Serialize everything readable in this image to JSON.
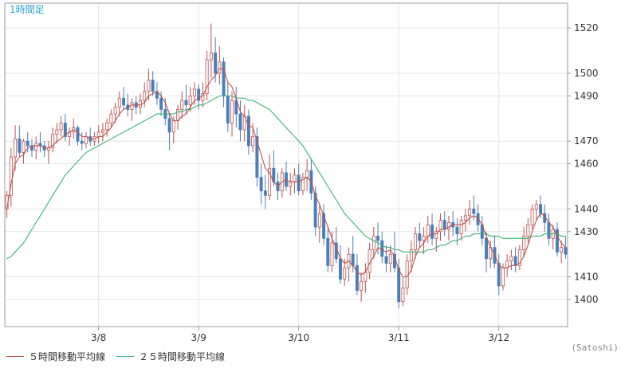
{
  "chart_data": {
    "type": "candlestick",
    "title": "1時間足",
    "ylim": [
      1388,
      1531
    ],
    "y_ticks": [
      1400,
      1410,
      1430,
      1440,
      1460,
      1470,
      1490,
      1500,
      1520
    ],
    "x_ticks": [
      "3/8",
      "3/9",
      "3/10",
      "3/11",
      "3/12"
    ],
    "x_tick_bar_index": [
      22,
      46,
      70,
      94,
      118
    ],
    "colors": {
      "up": "#c0504d",
      "down": "#4a7ebb",
      "ma5": "#c0504d",
      "ma25": "#3cb371",
      "title": "#29a0d8",
      "grid": "#e4e4e4",
      "axis": "#999999"
    },
    "series": [
      {
        "name": "OHLC",
        "ohlc": [
          [
            1440,
            1448,
            1436,
            1446
          ],
          [
            1446,
            1467,
            1441,
            1463
          ],
          [
            1463,
            1477,
            1457,
            1471
          ],
          [
            1471,
            1477,
            1463,
            1465
          ],
          [
            1465,
            1471,
            1460,
            1470
          ],
          [
            1470,
            1474,
            1465,
            1468
          ],
          [
            1468,
            1471,
            1463,
            1466
          ],
          [
            1466,
            1472,
            1462,
            1469
          ],
          [
            1469,
            1474,
            1465,
            1468
          ],
          [
            1468,
            1470,
            1463,
            1466
          ],
          [
            1466,
            1470,
            1460,
            1467
          ],
          [
            1467,
            1476,
            1465,
            1473
          ],
          [
            1473,
            1478,
            1469,
            1475
          ],
          [
            1475,
            1481,
            1472,
            1478
          ],
          [
            1478,
            1482,
            1470,
            1472
          ],
          [
            1472,
            1476,
            1468,
            1474
          ],
          [
            1474,
            1480,
            1471,
            1476
          ],
          [
            1476,
            1477,
            1468,
            1470
          ],
          [
            1470,
            1474,
            1466,
            1469
          ],
          [
            1469,
            1474,
            1467,
            1472
          ],
          [
            1472,
            1476,
            1468,
            1470
          ],
          [
            1470,
            1474,
            1468,
            1472
          ],
          [
            1472,
            1477,
            1469,
            1474
          ],
          [
            1474,
            1478,
            1470,
            1475
          ],
          [
            1475,
            1480,
            1472,
            1478
          ],
          [
            1478,
            1484,
            1476,
            1482
          ],
          [
            1482,
            1487,
            1478,
            1485
          ],
          [
            1485,
            1492,
            1481,
            1489
          ],
          [
            1489,
            1494,
            1484,
            1486
          ],
          [
            1486,
            1491,
            1481,
            1484
          ],
          [
            1484,
            1489,
            1479,
            1487
          ],
          [
            1487,
            1490,
            1482,
            1485
          ],
          [
            1485,
            1491,
            1482,
            1488
          ],
          [
            1488,
            1496,
            1485,
            1492
          ],
          [
            1492,
            1502,
            1488,
            1497
          ],
          [
            1497,
            1501,
            1490,
            1492
          ],
          [
            1492,
            1496,
            1486,
            1489
          ],
          [
            1489,
            1492,
            1481,
            1484
          ],
          [
            1484,
            1489,
            1477,
            1480
          ],
          [
            1480,
            1482,
            1466,
            1474
          ],
          [
            1474,
            1481,
            1469,
            1479
          ],
          [
            1479,
            1486,
            1475,
            1484
          ],
          [
            1484,
            1492,
            1480,
            1488
          ],
          [
            1488,
            1495,
            1482,
            1486
          ],
          [
            1486,
            1494,
            1483,
            1490
          ],
          [
            1490,
            1496,
            1486,
            1493
          ],
          [
            1493,
            1495,
            1484,
            1488
          ],
          [
            1488,
            1496,
            1485,
            1491
          ],
          [
            1491,
            1510,
            1488,
            1506
          ],
          [
            1506,
            1522,
            1498,
            1509
          ],
          [
            1509,
            1516,
            1496,
            1500
          ],
          [
            1500,
            1512,
            1495,
            1505
          ],
          [
            1505,
            1507,
            1485,
            1490
          ],
          [
            1490,
            1496,
            1474,
            1478
          ],
          [
            1478,
            1492,
            1472,
            1488
          ],
          [
            1488,
            1494,
            1476,
            1482
          ],
          [
            1482,
            1488,
            1470,
            1475
          ],
          [
            1475,
            1486,
            1470,
            1481
          ],
          [
            1481,
            1484,
            1464,
            1468
          ],
          [
            1468,
            1478,
            1465,
            1472
          ],
          [
            1472,
            1476,
            1450,
            1454
          ],
          [
            1454,
            1460,
            1442,
            1448
          ],
          [
            1448,
            1455,
            1440,
            1446
          ],
          [
            1446,
            1464,
            1444,
            1458
          ],
          [
            1458,
            1466,
            1450,
            1452
          ],
          [
            1452,
            1456,
            1444,
            1448
          ],
          [
            1448,
            1458,
            1445,
            1456
          ],
          [
            1456,
            1461,
            1448,
            1450
          ],
          [
            1450,
            1456,
            1446,
            1452
          ],
          [
            1452,
            1458,
            1447,
            1455
          ],
          [
            1455,
            1460,
            1446,
            1448
          ],
          [
            1448,
            1456,
            1446,
            1454
          ],
          [
            1454,
            1462,
            1448,
            1457
          ],
          [
            1457,
            1462,
            1444,
            1447
          ],
          [
            1447,
            1450,
            1428,
            1432
          ],
          [
            1432,
            1442,
            1425,
            1438
          ],
          [
            1438,
            1442,
            1424,
            1427
          ],
          [
            1427,
            1432,
            1412,
            1415
          ],
          [
            1415,
            1430,
            1412,
            1425
          ],
          [
            1425,
            1432,
            1416,
            1418
          ],
          [
            1418,
            1424,
            1407,
            1409
          ],
          [
            1409,
            1418,
            1406,
            1414
          ],
          [
            1414,
            1423,
            1408,
            1420
          ],
          [
            1420,
            1428,
            1412,
            1415
          ],
          [
            1415,
            1420,
            1402,
            1404
          ],
          [
            1404,
            1412,
            1399,
            1408
          ],
          [
            1408,
            1416,
            1403,
            1412
          ],
          [
            1412,
            1425,
            1409,
            1422
          ],
          [
            1422,
            1432,
            1418,
            1428
          ],
          [
            1428,
            1434,
            1420,
            1426
          ],
          [
            1426,
            1430,
            1416,
            1419
          ],
          [
            1419,
            1424,
            1412,
            1416
          ],
          [
            1416,
            1424,
            1412,
            1420
          ],
          [
            1420,
            1430,
            1412,
            1414
          ],
          [
            1414,
            1418,
            1396,
            1399
          ],
          [
            1399,
            1410,
            1397,
            1405
          ],
          [
            1405,
            1420,
            1402,
            1417
          ],
          [
            1417,
            1426,
            1412,
            1422
          ],
          [
            1422,
            1432,
            1418,
            1429
          ],
          [
            1429,
            1434,
            1423,
            1426
          ],
          [
            1426,
            1432,
            1420,
            1428
          ],
          [
            1428,
            1437,
            1425,
            1433
          ],
          [
            1433,
            1438,
            1424,
            1427
          ],
          [
            1427,
            1432,
            1421,
            1430
          ],
          [
            1430,
            1438,
            1426,
            1435
          ],
          [
            1435,
            1439,
            1428,
            1431
          ],
          [
            1431,
            1437,
            1426,
            1434
          ],
          [
            1434,
            1439,
            1428,
            1432
          ],
          [
            1432,
            1436,
            1424,
            1429
          ],
          [
            1429,
            1437,
            1426,
            1435
          ],
          [
            1435,
            1440,
            1430,
            1437
          ],
          [
            1437,
            1444,
            1433,
            1440
          ],
          [
            1440,
            1446,
            1435,
            1438
          ],
          [
            1438,
            1442,
            1430,
            1433
          ],
          [
            1433,
            1437,
            1424,
            1427
          ],
          [
            1427,
            1430,
            1412,
            1418
          ],
          [
            1418,
            1426,
            1414,
            1423
          ],
          [
            1423,
            1428,
            1414,
            1416
          ],
          [
            1416,
            1420,
            1402,
            1406
          ],
          [
            1406,
            1416,
            1404,
            1414
          ],
          [
            1414,
            1420,
            1410,
            1417
          ],
          [
            1417,
            1422,
            1413,
            1419
          ],
          [
            1419,
            1423,
            1412,
            1415
          ],
          [
            1415,
            1424,
            1413,
            1422
          ],
          [
            1422,
            1432,
            1419,
            1428
          ],
          [
            1428,
            1436,
            1425,
            1433
          ],
          [
            1433,
            1442,
            1431,
            1440
          ],
          [
            1440,
            1444,
            1435,
            1442
          ],
          [
            1442,
            1446,
            1436,
            1438
          ],
          [
            1438,
            1442,
            1430,
            1434
          ],
          [
            1434,
            1438,
            1424,
            1427
          ],
          [
            1427,
            1433,
            1422,
            1431
          ],
          [
            1431,
            1434,
            1419,
            1421
          ],
          [
            1421,
            1426,
            1416,
            1423
          ],
          [
            1423,
            1428,
            1418,
            1420
          ]
        ]
      },
      {
        "name": "５時間移動平均線",
        "values": [
          1440,
          1451,
          1460,
          1463,
          1464,
          1467,
          1468,
          1468,
          1468,
          1467,
          1467,
          1468,
          1470,
          1471,
          1473,
          1474,
          1475,
          1474,
          1472,
          1472,
          1471,
          1471,
          1472,
          1472,
          1474,
          1476,
          1479,
          1482,
          1484,
          1485,
          1486,
          1486,
          1486,
          1487,
          1490,
          1491,
          1492,
          1490,
          1487,
          1482,
          1479,
          1479,
          1481,
          1482,
          1485,
          1488,
          1489,
          1490,
          1494,
          1497,
          1499,
          1502,
          1502,
          1496,
          1494,
          1489,
          1483,
          1481,
          1477,
          1476,
          1470,
          1464,
          1458,
          1456,
          1452,
          1450,
          1452,
          1453,
          1452,
          1452,
          1452,
          1453,
          1454,
          1452,
          1446,
          1442,
          1437,
          1432,
          1427,
          1423,
          1418,
          1416,
          1417,
          1415,
          1412,
          1411,
          1412,
          1416,
          1419,
          1423,
          1422,
          1421,
          1422,
          1419,
          1413,
          1410,
          1410,
          1413,
          1419,
          1423,
          1425,
          1428,
          1429,
          1429,
          1431,
          1431,
          1432,
          1433,
          1433,
          1433,
          1434,
          1436,
          1437,
          1436,
          1433,
          1428,
          1423,
          1420,
          1415,
          1414,
          1414,
          1415,
          1415,
          1416,
          1419,
          1424,
          1430,
          1435,
          1438,
          1437,
          1434,
          1432,
          1428,
          1425,
          1423
        ]
      },
      {
        "name": "２５時間移動平均線",
        "values": [
          1418,
          1419,
          1421,
          1423,
          1425,
          1428,
          1431,
          1434,
          1437,
          1440,
          1443,
          1446,
          1449,
          1452,
          1455,
          1457,
          1459,
          1461,
          1463,
          1465,
          1466,
          1467,
          1468,
          1469,
          1470,
          1471,
          1472,
          1473,
          1474,
          1475,
          1476,
          1477,
          1478,
          1479,
          1480,
          1481,
          1482,
          1482,
          1482,
          1482,
          1482,
          1483,
          1483,
          1484,
          1484,
          1485,
          1486,
          1486,
          1487,
          1488,
          1489,
          1490,
          1490,
          1490,
          1490,
          1489,
          1489,
          1489,
          1488,
          1488,
          1487,
          1486,
          1485,
          1484,
          1482,
          1480,
          1478,
          1476,
          1474,
          1472,
          1470,
          1468,
          1465,
          1462,
          1459,
          1456,
          1453,
          1450,
          1447,
          1444,
          1441,
          1438,
          1436,
          1434,
          1432,
          1430,
          1428,
          1427,
          1426,
          1425,
          1424,
          1423,
          1423,
          1422,
          1422,
          1421,
          1421,
          1421,
          1421,
          1421,
          1421,
          1422,
          1422,
          1423,
          1424,
          1424,
          1425,
          1426,
          1426,
          1427,
          1428,
          1428,
          1429,
          1429,
          1429,
          1429,
          1428,
          1428,
          1428,
          1427,
          1427,
          1427,
          1427,
          1427,
          1427,
          1427,
          1428,
          1428,
          1428,
          1429,
          1429,
          1429,
          1429,
          1428,
          1428
        ]
      }
    ]
  },
  "legend": {
    "ma5_label": "５時間移動平均線",
    "ma25_label": "２５時間移動平均線"
  },
  "credit": "(Satoshi)"
}
